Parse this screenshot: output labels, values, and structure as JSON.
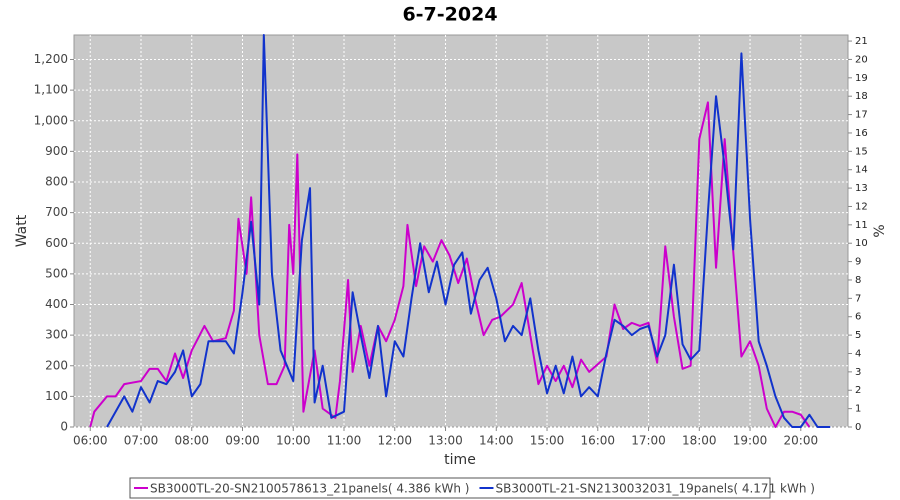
{
  "chart_data": {
    "type": "line",
    "title": "6-7-2024",
    "x_label": "time",
    "y_label": "Watt",
    "y2_label": "%",
    "grid": true,
    "legend": "bottom",
    "xlim": [
      5.68,
      20.93
    ],
    "xticks": [
      {
        "value": 6,
        "label": "06:00"
      },
      {
        "value": 7,
        "label": "07:00"
      },
      {
        "value": 8,
        "label": "08:00"
      },
      {
        "value": 9,
        "label": "09:00"
      },
      {
        "value": 10,
        "label": "10:00"
      },
      {
        "value": 11,
        "label": "11:00"
      },
      {
        "value": 12,
        "label": "12:00"
      },
      {
        "value": 13,
        "label": "13:00"
      },
      {
        "value": 14,
        "label": "14:00"
      },
      {
        "value": 15,
        "label": "15:00"
      },
      {
        "value": 16,
        "label": "16:00"
      },
      {
        "value": 17,
        "label": "17:00"
      },
      {
        "value": 18,
        "label": "18:00"
      },
      {
        "value": 19,
        "label": "19:00"
      },
      {
        "value": 20,
        "label": "20:00"
      }
    ],
    "ylim": [
      0,
      1280
    ],
    "yticks": [
      0,
      100,
      200,
      300,
      400,
      500,
      600,
      700,
      800,
      900,
      {
        "value": 1000,
        "label": "1,000"
      },
      {
        "value": 1100,
        "label": "1,100"
      },
      {
        "value": 1200,
        "label": "1,200"
      }
    ],
    "y2lim": [
      0,
      21.33
    ],
    "y2ticks": [
      0,
      1,
      2,
      3,
      4,
      5,
      6,
      7,
      8,
      9,
      10,
      11,
      12,
      13,
      14,
      15,
      16,
      17,
      18,
      19,
      20,
      21
    ],
    "series": [
      {
        "name": "SB3000TL-20-SN2100578613_21panels( 4.386 kWh )",
        "color": "#cc00cc",
        "x": [
          6.0,
          6.08,
          6.33,
          6.5,
          6.67,
          7.0,
          7.17,
          7.33,
          7.5,
          7.67,
          7.83,
          8.0,
          8.25,
          8.42,
          8.67,
          8.83,
          8.92,
          9.08,
          9.17,
          9.33,
          9.5,
          9.67,
          9.83,
          9.92,
          10.0,
          10.08,
          10.2,
          10.42,
          10.58,
          10.83,
          10.92,
          11.08,
          11.17,
          11.33,
          11.5,
          11.67,
          11.83,
          12.0,
          12.17,
          12.25,
          12.42,
          12.58,
          12.75,
          12.92,
          13.08,
          13.25,
          13.42,
          13.58,
          13.75,
          13.92,
          14.08,
          14.33,
          14.5,
          14.67,
          14.83,
          15.0,
          15.17,
          15.33,
          15.5,
          15.67,
          15.83,
          16.17,
          16.33,
          16.5,
          16.67,
          16.83,
          17.0,
          17.17,
          17.33,
          17.5,
          17.67,
          17.83,
          18.0,
          18.17,
          18.33,
          18.5,
          18.67,
          18.83,
          19.0,
          19.17,
          19.33,
          19.5,
          19.67,
          19.83,
          20.0,
          20.17
        ],
        "values": [
          0,
          50,
          100,
          100,
          140,
          150,
          190,
          190,
          150,
          240,
          160,
          250,
          330,
          280,
          290,
          380,
          680,
          500,
          750,
          300,
          140,
          140,
          200,
          660,
          500,
          890,
          50,
          250,
          60,
          30,
          150,
          480,
          180,
          330,
          200,
          330,
          280,
          350,
          460,
          660,
          460,
          590,
          540,
          610,
          560,
          470,
          550,
          420,
          300,
          350,
          360,
          400,
          470,
          300,
          140,
          200,
          150,
          200,
          130,
          220,
          180,
          230,
          400,
          320,
          340,
          330,
          340,
          210,
          590,
          360,
          190,
          200,
          940,
          1060,
          520,
          940,
          570,
          230,
          280,
          200,
          60,
          0,
          50,
          50,
          40,
          0
        ]
      },
      {
        "name": "SB3000TL-21-SN2130032031_19panels( 4.171 kWh )",
        "color": "#1133cc",
        "x": [
          6.33,
          6.67,
          6.83,
          7.0,
          7.17,
          7.33,
          7.5,
          7.67,
          7.83,
          8.0,
          8.17,
          8.33,
          8.67,
          8.83,
          9.0,
          9.17,
          9.33,
          9.42,
          9.58,
          9.75,
          10.0,
          10.17,
          10.33,
          10.42,
          10.58,
          10.75,
          11.0,
          11.17,
          11.33,
          11.5,
          11.67,
          11.83,
          12.0,
          12.17,
          12.33,
          12.5,
          12.67,
          12.83,
          13.0,
          13.17,
          13.33,
          13.5,
          13.67,
          13.83,
          14.0,
          14.17,
          14.33,
          14.5,
          14.67,
          14.83,
          15.0,
          15.17,
          15.33,
          15.5,
          15.67,
          15.83,
          16.0,
          16.17,
          16.33,
          16.5,
          16.67,
          16.83,
          17.0,
          17.17,
          17.33,
          17.5,
          17.67,
          17.83,
          18.0,
          18.17,
          18.33,
          18.5,
          18.67,
          18.83,
          19.0,
          19.17,
          19.33,
          19.5,
          19.67,
          19.83,
          20.0,
          20.17,
          20.33,
          20.58
        ],
        "values": [
          0,
          100,
          50,
          130,
          80,
          150,
          140,
          180,
          250,
          100,
          140,
          280,
          280,
          240,
          440,
          670,
          400,
          1280,
          500,
          250,
          150,
          610,
          780,
          80,
          200,
          30,
          50,
          440,
          300,
          160,
          330,
          100,
          280,
          230,
          420,
          600,
          440,
          540,
          400,
          530,
          570,
          370,
          480,
          520,
          420,
          280,
          330,
          300,
          420,
          250,
          110,
          200,
          110,
          230,
          100,
          130,
          100,
          240,
          350,
          330,
          300,
          320,
          330,
          230,
          300,
          530,
          270,
          220,
          250,
          700,
          1080,
          850,
          580,
          1220,
          680,
          280,
          200,
          100,
          30,
          0,
          0,
          40,
          0,
          0
        ]
      }
    ]
  }
}
